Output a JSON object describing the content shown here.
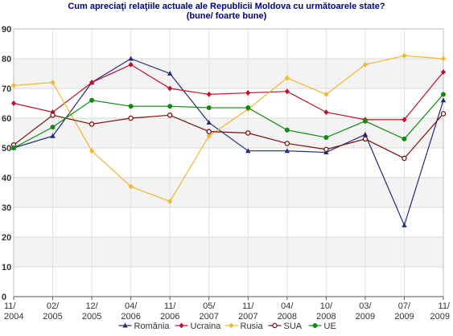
{
  "chart_data": {
    "type": "line",
    "title": "Cum apreciaţi relaţiile actuale ale Republicii Moldova cu următoarele state?",
    "subtitle": "(bune/ foarte bune)",
    "categories": [
      [
        "11/",
        "2004"
      ],
      [
        "02/",
        "2005"
      ],
      [
        "12/",
        "2005"
      ],
      [
        "04/",
        "2006"
      ],
      [
        "11/",
        "2006"
      ],
      [
        "05/",
        "2007"
      ],
      [
        "11/",
        "2007"
      ],
      [
        "04/",
        "2008"
      ],
      [
        "10/",
        "2008"
      ],
      [
        "03/",
        "2009"
      ],
      [
        "07/",
        "2009"
      ],
      [
        "11/",
        "2009"
      ]
    ],
    "ylim": [
      0,
      90
    ],
    "yticks": [
      0,
      10,
      20,
      30,
      40,
      50,
      60,
      70,
      80,
      90
    ],
    "legend_position": "bottom",
    "series": [
      {
        "name": "România",
        "color": "#1f2d7a",
        "marker": "triangle",
        "values": [
          50,
          54,
          72,
          80,
          75,
          58.5,
          49,
          49,
          48.5,
          54.5,
          24,
          66
        ]
      },
      {
        "name": "Ucraina",
        "color": "#c0102a",
        "marker": "diamond",
        "values": [
          65,
          62,
          72,
          78,
          70,
          68,
          68.5,
          69,
          62,
          59.5,
          59.5,
          75.5
        ]
      },
      {
        "name": "Rusia",
        "color": "#f5b52e",
        "marker": "diamond",
        "values": [
          71,
          72,
          49,
          37,
          32,
          54,
          63,
          73.5,
          68,
          78,
          81,
          80
        ]
      },
      {
        "name": "SUA",
        "color": "#7a1010",
        "marker": "circle",
        "values": [
          51,
          61,
          58,
          60,
          61,
          55.5,
          55,
          51.5,
          49.5,
          53,
          46.5,
          61.5
        ]
      },
      {
        "name": "UE",
        "color": "#108a10",
        "marker": "dot",
        "values": [
          50,
          57,
          66,
          64,
          64,
          63.5,
          63.5,
          56,
          53.5,
          59,
          53,
          68
        ]
      }
    ]
  }
}
